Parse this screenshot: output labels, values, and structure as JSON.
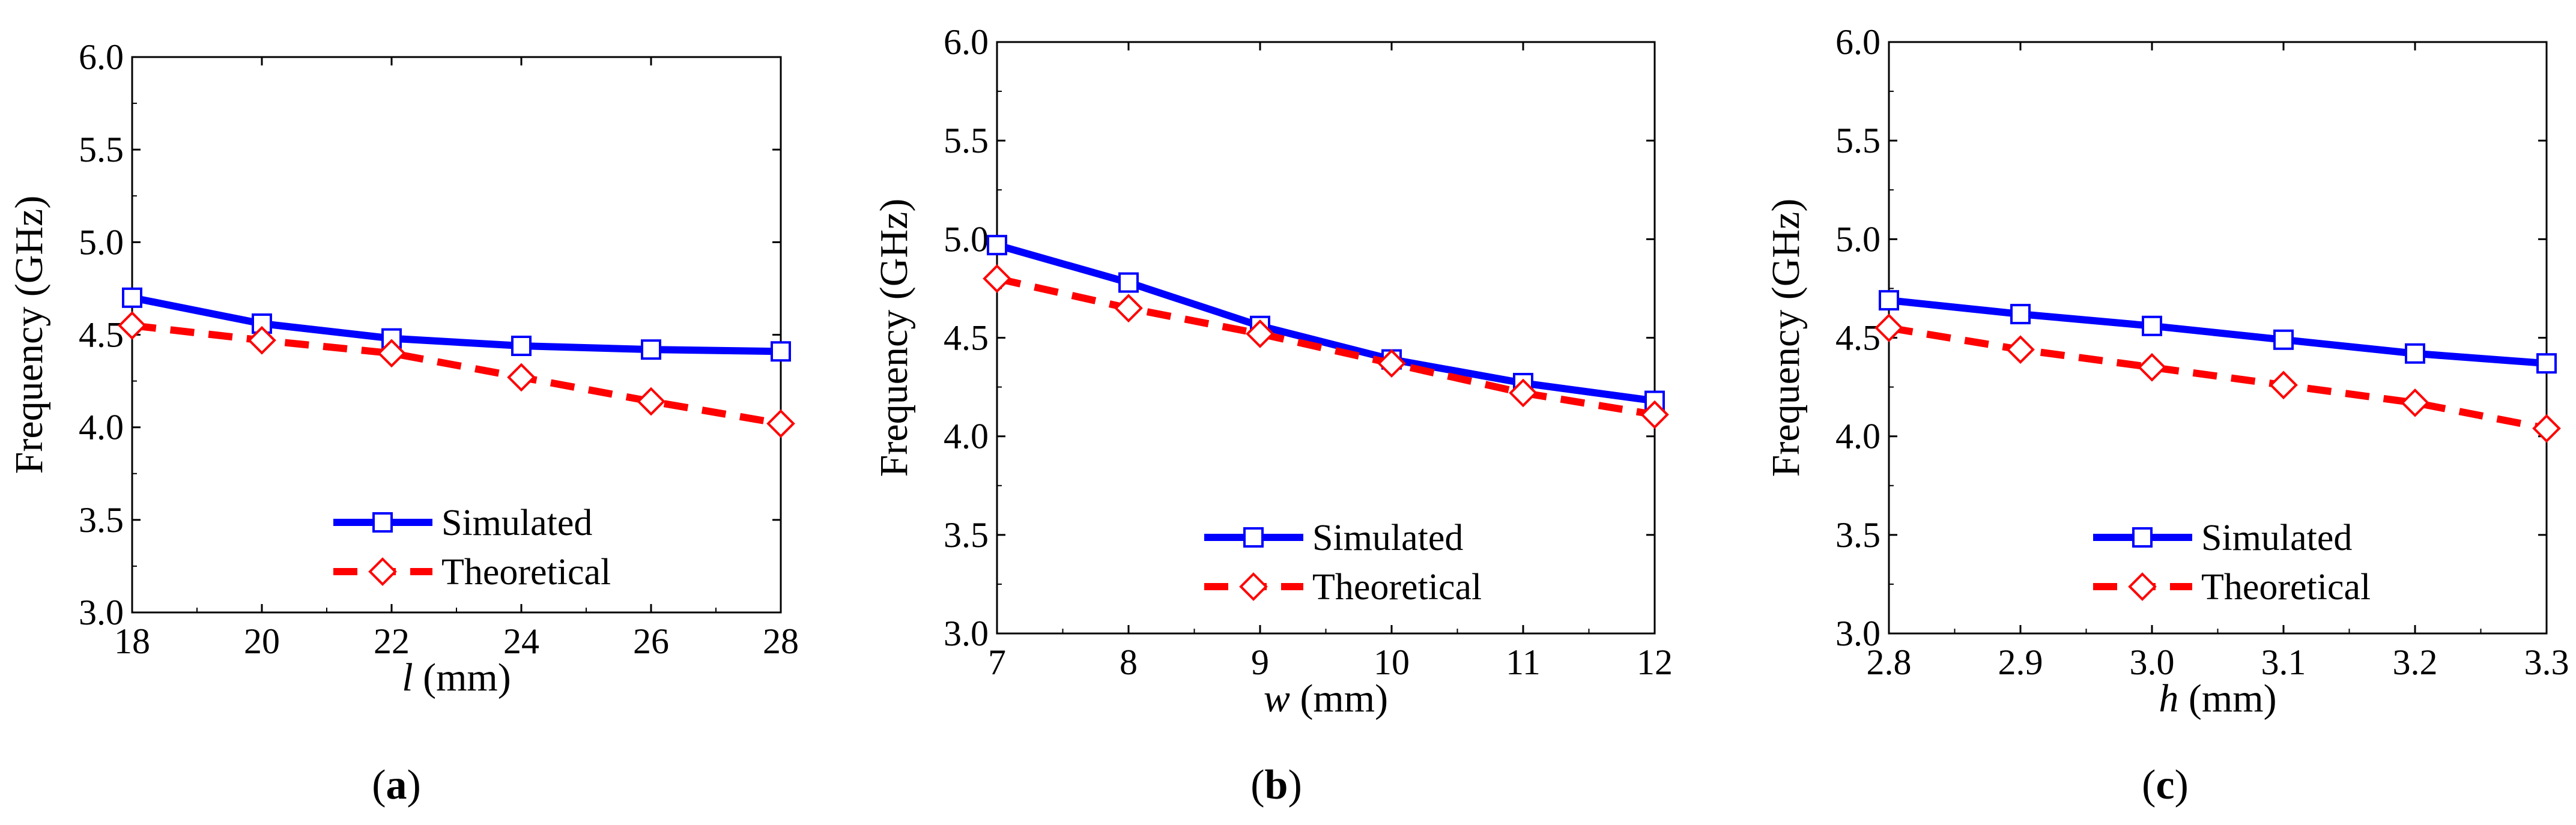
{
  "figure": {
    "legend": {
      "simulated": "Simulated",
      "theoretical": "Theoretical"
    },
    "colors": {
      "simulated": "#0000ff",
      "theoretical": "#ff0000",
      "marker_simulated_fill": "#ffffff",
      "marker_theoretical_fill": "#ffffff",
      "axis": "#000000"
    }
  },
  "chart_data": [
    {
      "type": "line",
      "panel": "a",
      "panel_label": "a",
      "ylabel": "Frequency (GHz)",
      "xlabel_var": "l",
      "xlabel_unit": " (mm)",
      "xlim": [
        18,
        28
      ],
      "ylim": [
        3.0,
        6.0
      ],
      "xticks": [
        "18",
        "20",
        "22",
        "24",
        "26",
        "28"
      ],
      "xtick_values": [
        18,
        20,
        22,
        24,
        26,
        28
      ],
      "yticks": [
        "3.0",
        "3.5",
        "4.0",
        "4.5",
        "5.0",
        "5.5",
        "6.0"
      ],
      "ytick_values": [
        3.0,
        3.5,
        4.0,
        4.5,
        5.0,
        5.5,
        6.0
      ],
      "x": [
        18,
        20,
        22,
        24,
        26,
        28
      ],
      "series": [
        {
          "name": "Simulated",
          "values": [
            4.7,
            4.56,
            4.48,
            4.44,
            4.42,
            4.41
          ]
        },
        {
          "name": "Theoretical",
          "values": [
            4.55,
            4.47,
            4.4,
            4.27,
            4.14,
            4.02
          ]
        }
      ]
    },
    {
      "type": "line",
      "panel": "b",
      "panel_label": "b",
      "ylabel": "Frequency (GHz)",
      "xlabel_var": "w",
      "xlabel_unit": " (mm)",
      "xlim": [
        7,
        12
      ],
      "ylim": [
        3.0,
        6.0
      ],
      "xticks": [
        "7",
        "8",
        "9",
        "10",
        "11",
        "12"
      ],
      "xtick_values": [
        7,
        8,
        9,
        10,
        11,
        12
      ],
      "yticks": [
        "3.0",
        "3.5",
        "4.0",
        "4.5",
        "5.0",
        "5.5",
        "6.0"
      ],
      "ytick_values": [
        3.0,
        3.5,
        4.0,
        4.5,
        5.0,
        5.5,
        6.0
      ],
      "x": [
        7,
        8,
        9,
        10,
        11,
        12
      ],
      "series": [
        {
          "name": "Simulated",
          "values": [
            4.97,
            4.78,
            4.56,
            4.39,
            4.27,
            4.18
          ]
        },
        {
          "name": "Theoretical",
          "values": [
            4.8,
            4.65,
            4.52,
            4.37,
            4.22,
            4.11
          ]
        }
      ]
    },
    {
      "type": "line",
      "panel": "c",
      "panel_label": "c",
      "ylabel": "Frequency (GHz)",
      "xlabel_var": "h",
      "xlabel_unit": " (mm)",
      "xlim": [
        2.8,
        3.3
      ],
      "ylim": [
        3.0,
        6.0
      ],
      "xticks": [
        "2.8",
        "2.9",
        "3.0",
        "3.1",
        "3.2",
        "3.3"
      ],
      "xtick_values": [
        2.8,
        2.9,
        3.0,
        3.1,
        3.2,
        3.3
      ],
      "yticks": [
        "3.0",
        "3.5",
        "4.0",
        "4.5",
        "5.0",
        "5.5",
        "6.0"
      ],
      "ytick_values": [
        3.0,
        3.5,
        4.0,
        4.5,
        5.0,
        5.5,
        6.0
      ],
      "x": [
        2.8,
        2.9,
        3.0,
        3.1,
        3.2,
        3.3
      ],
      "series": [
        {
          "name": "Simulated",
          "values": [
            4.69,
            4.62,
            4.56,
            4.49,
            4.42,
            4.37
          ]
        },
        {
          "name": "Theoretical",
          "values": [
            4.55,
            4.44,
            4.35,
            4.26,
            4.17,
            4.04
          ]
        }
      ]
    }
  ]
}
